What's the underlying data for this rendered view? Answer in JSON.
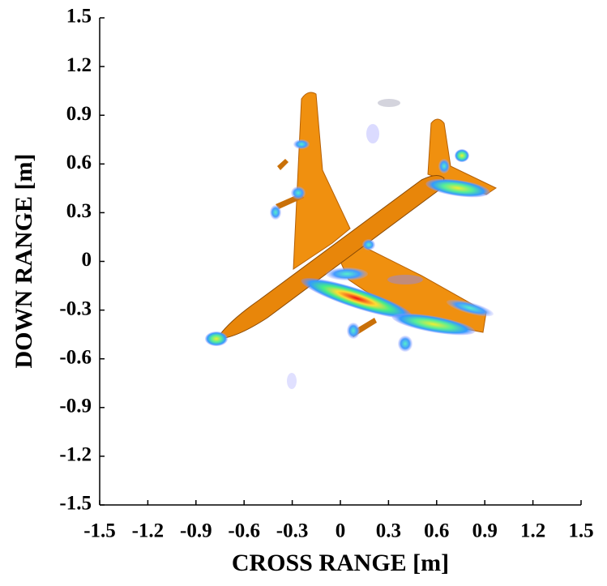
{
  "chart_data": {
    "type": "image",
    "xlabel": "CROSS RANGE [m]",
    "ylabel": "DOWN RANGE [m]",
    "xlim": [
      -1.5,
      1.5
    ],
    "ylim": [
      -1.5,
      1.5
    ],
    "xticks": [
      -1.5,
      -1.2,
      -0.9,
      -0.6,
      -0.3,
      0,
      0.3,
      0.6,
      0.9,
      1.2,
      1.5
    ],
    "yticks": [
      -1.5,
      -1.2,
      -0.9,
      -0.6,
      -0.3,
      0,
      0.3,
      0.6,
      0.9,
      1.2,
      1.5
    ]
  }
}
